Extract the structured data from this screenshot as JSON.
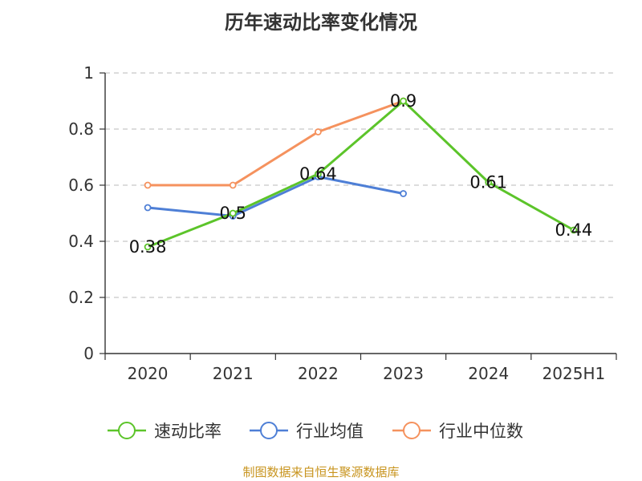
{
  "title": "历年速动比率变化情况",
  "source": "制图数据来自恒生聚源数据库",
  "chart_data": {
    "type": "line",
    "categories": [
      "2020",
      "2021",
      "2022",
      "2023",
      "2024",
      "2025H1"
    ],
    "ylim": [
      0,
      1
    ],
    "yticks": [
      "0",
      "0.2",
      "0.4",
      "0.6",
      "0.8",
      "1"
    ],
    "grid": true,
    "legend_position": "bottom",
    "series": [
      {
        "name": "速动比率",
        "color": "#5cc42a",
        "values": [
          0.38,
          0.5,
          0.64,
          0.9,
          0.61,
          0.44
        ],
        "labels": [
          "0.38",
          "0.5",
          "0.64",
          "0.9",
          "0.61",
          "0.44"
        ]
      },
      {
        "name": "行业均值",
        "color": "#4e7fd6",
        "values": [
          0.52,
          0.49,
          0.63,
          0.57,
          null,
          null
        ]
      },
      {
        "name": "行业中位数",
        "color": "#f5925e",
        "values": [
          0.6,
          0.6,
          0.79,
          0.9,
          null,
          null
        ]
      }
    ]
  }
}
